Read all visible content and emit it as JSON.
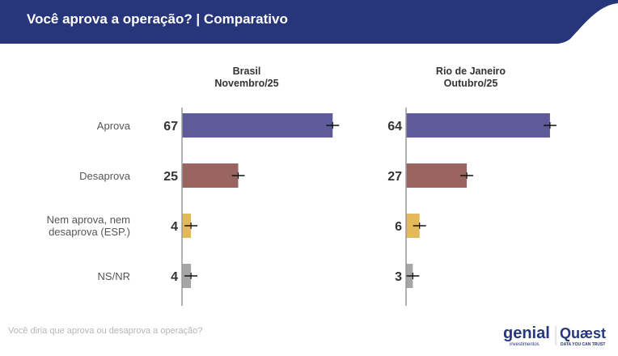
{
  "header": {
    "title": "Você aprova a operação? | Comparativo"
  },
  "footer": {
    "question": "Você diria que aprova ou desaprova a operação?",
    "logo_left": "genial investimentos",
    "logo_right": "Quaest DATA YOU CAN TRUST"
  },
  "colors": {
    "header": "#27367a",
    "Aprova": "#5f5a9a",
    "Desaprova": "#9a6461",
    "Nem aprova, nem desaprova (ESP.)": "#e3b95a",
    "NS/NR": "#a6a6a6"
  },
  "chart_data": {
    "type": "bar",
    "orientation": "horizontal",
    "categories": [
      "Aprova",
      "Desaprova",
      "Nem aprova, nem desaprova (ESP.)",
      "NS/NR"
    ],
    "panels": [
      {
        "title_line1": "Brasil",
        "title_line2": "Novembro/25",
        "values": [
          67,
          25,
          4,
          4
        ]
      },
      {
        "title_line1": "Rio de Janeiro",
        "title_line2": "Outubro/25",
        "values": [
          64,
          27,
          6,
          3
        ]
      }
    ],
    "error_bars": true
  }
}
